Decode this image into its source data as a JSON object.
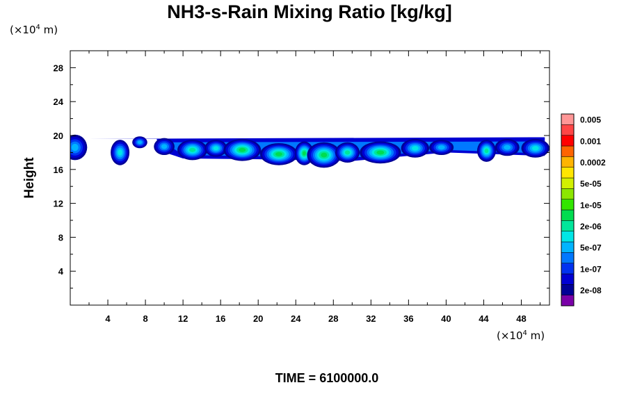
{
  "chart_data": {
    "type": "heatmap",
    "title": "NH3-s-Rain Mixing Ratio [kg/kg]",
    "x_unit": {
      "prefix": "(×10",
      "exponent": "4",
      "suffix": " m)"
    },
    "y_unit": {
      "prefix": "(×10",
      "exponent": "4",
      "suffix": " m)"
    },
    "ylabel": "Height",
    "xlabel": "",
    "xlim": [
      0,
      51
    ],
    "ylim": [
      0,
      30
    ],
    "x_ticks": [
      "4",
      "8",
      "12",
      "16",
      "20",
      "24",
      "28",
      "32",
      "36",
      "40",
      "44",
      "48"
    ],
    "y_ticks": [
      "4",
      "8",
      "12",
      "16",
      "20",
      "24",
      "28"
    ],
    "footer": "TIME = 6100000.0",
    "grid": false,
    "legend_position": "right",
    "colorbar": {
      "colors": [
        "#7a00a8",
        "#000096",
        "#0000d2",
        "#0032f0",
        "#0078ff",
        "#00b4ff",
        "#00e6e6",
        "#00e69b",
        "#00dc50",
        "#32e600",
        "#8ce600",
        "#d2f000",
        "#ffe600",
        "#ffb400",
        "#ff6400",
        "#ff0000",
        "#ff4646",
        "#ff9696"
      ],
      "labels": [
        "2e-08",
        "1e-07",
        "5e-07",
        "2e-06",
        "1e-05",
        "5e-05",
        "0.0002",
        "0.001",
        "0.005"
      ]
    },
    "blobs": [
      {
        "x": 0.5,
        "y": 18.6,
        "w": 1.3,
        "h": 1.5,
        "level": 5
      },
      {
        "x": 5.3,
        "y": 18.0,
        "w": 1.0,
        "h": 1.5,
        "level": 6
      },
      {
        "x": 7.4,
        "y": 19.2,
        "w": 0.8,
        "h": 0.7,
        "level": 5
      },
      {
        "x": 10.0,
        "y": 18.7,
        "w": 1.1,
        "h": 1.0,
        "level": 5
      },
      {
        "x": 13.0,
        "y": 18.3,
        "w": 1.6,
        "h": 1.2,
        "level": 7
      },
      {
        "x": 15.5,
        "y": 18.5,
        "w": 1.2,
        "h": 1.0,
        "level": 6
      },
      {
        "x": 18.3,
        "y": 18.3,
        "w": 2.0,
        "h": 1.3,
        "level": 8
      },
      {
        "x": 22.2,
        "y": 17.8,
        "w": 2.0,
        "h": 1.3,
        "level": 8
      },
      {
        "x": 24.9,
        "y": 17.9,
        "w": 1.0,
        "h": 1.4,
        "level": 8
      },
      {
        "x": 27.0,
        "y": 17.7,
        "w": 1.8,
        "h": 1.5,
        "level": 8
      },
      {
        "x": 29.5,
        "y": 18.0,
        "w": 1.3,
        "h": 1.2,
        "level": 7
      },
      {
        "x": 33.0,
        "y": 18.0,
        "w": 2.2,
        "h": 1.3,
        "level": 8
      },
      {
        "x": 36.7,
        "y": 18.5,
        "w": 1.5,
        "h": 1.1,
        "level": 6
      },
      {
        "x": 39.5,
        "y": 18.6,
        "w": 1.3,
        "h": 0.9,
        "level": 5
      },
      {
        "x": 44.3,
        "y": 18.2,
        "w": 1.0,
        "h": 1.3,
        "level": 7
      },
      {
        "x": 46.5,
        "y": 18.6,
        "w": 1.3,
        "h": 1.0,
        "level": 5
      },
      {
        "x": 49.5,
        "y": 18.5,
        "w": 1.5,
        "h": 1.1,
        "level": 6
      }
    ]
  }
}
